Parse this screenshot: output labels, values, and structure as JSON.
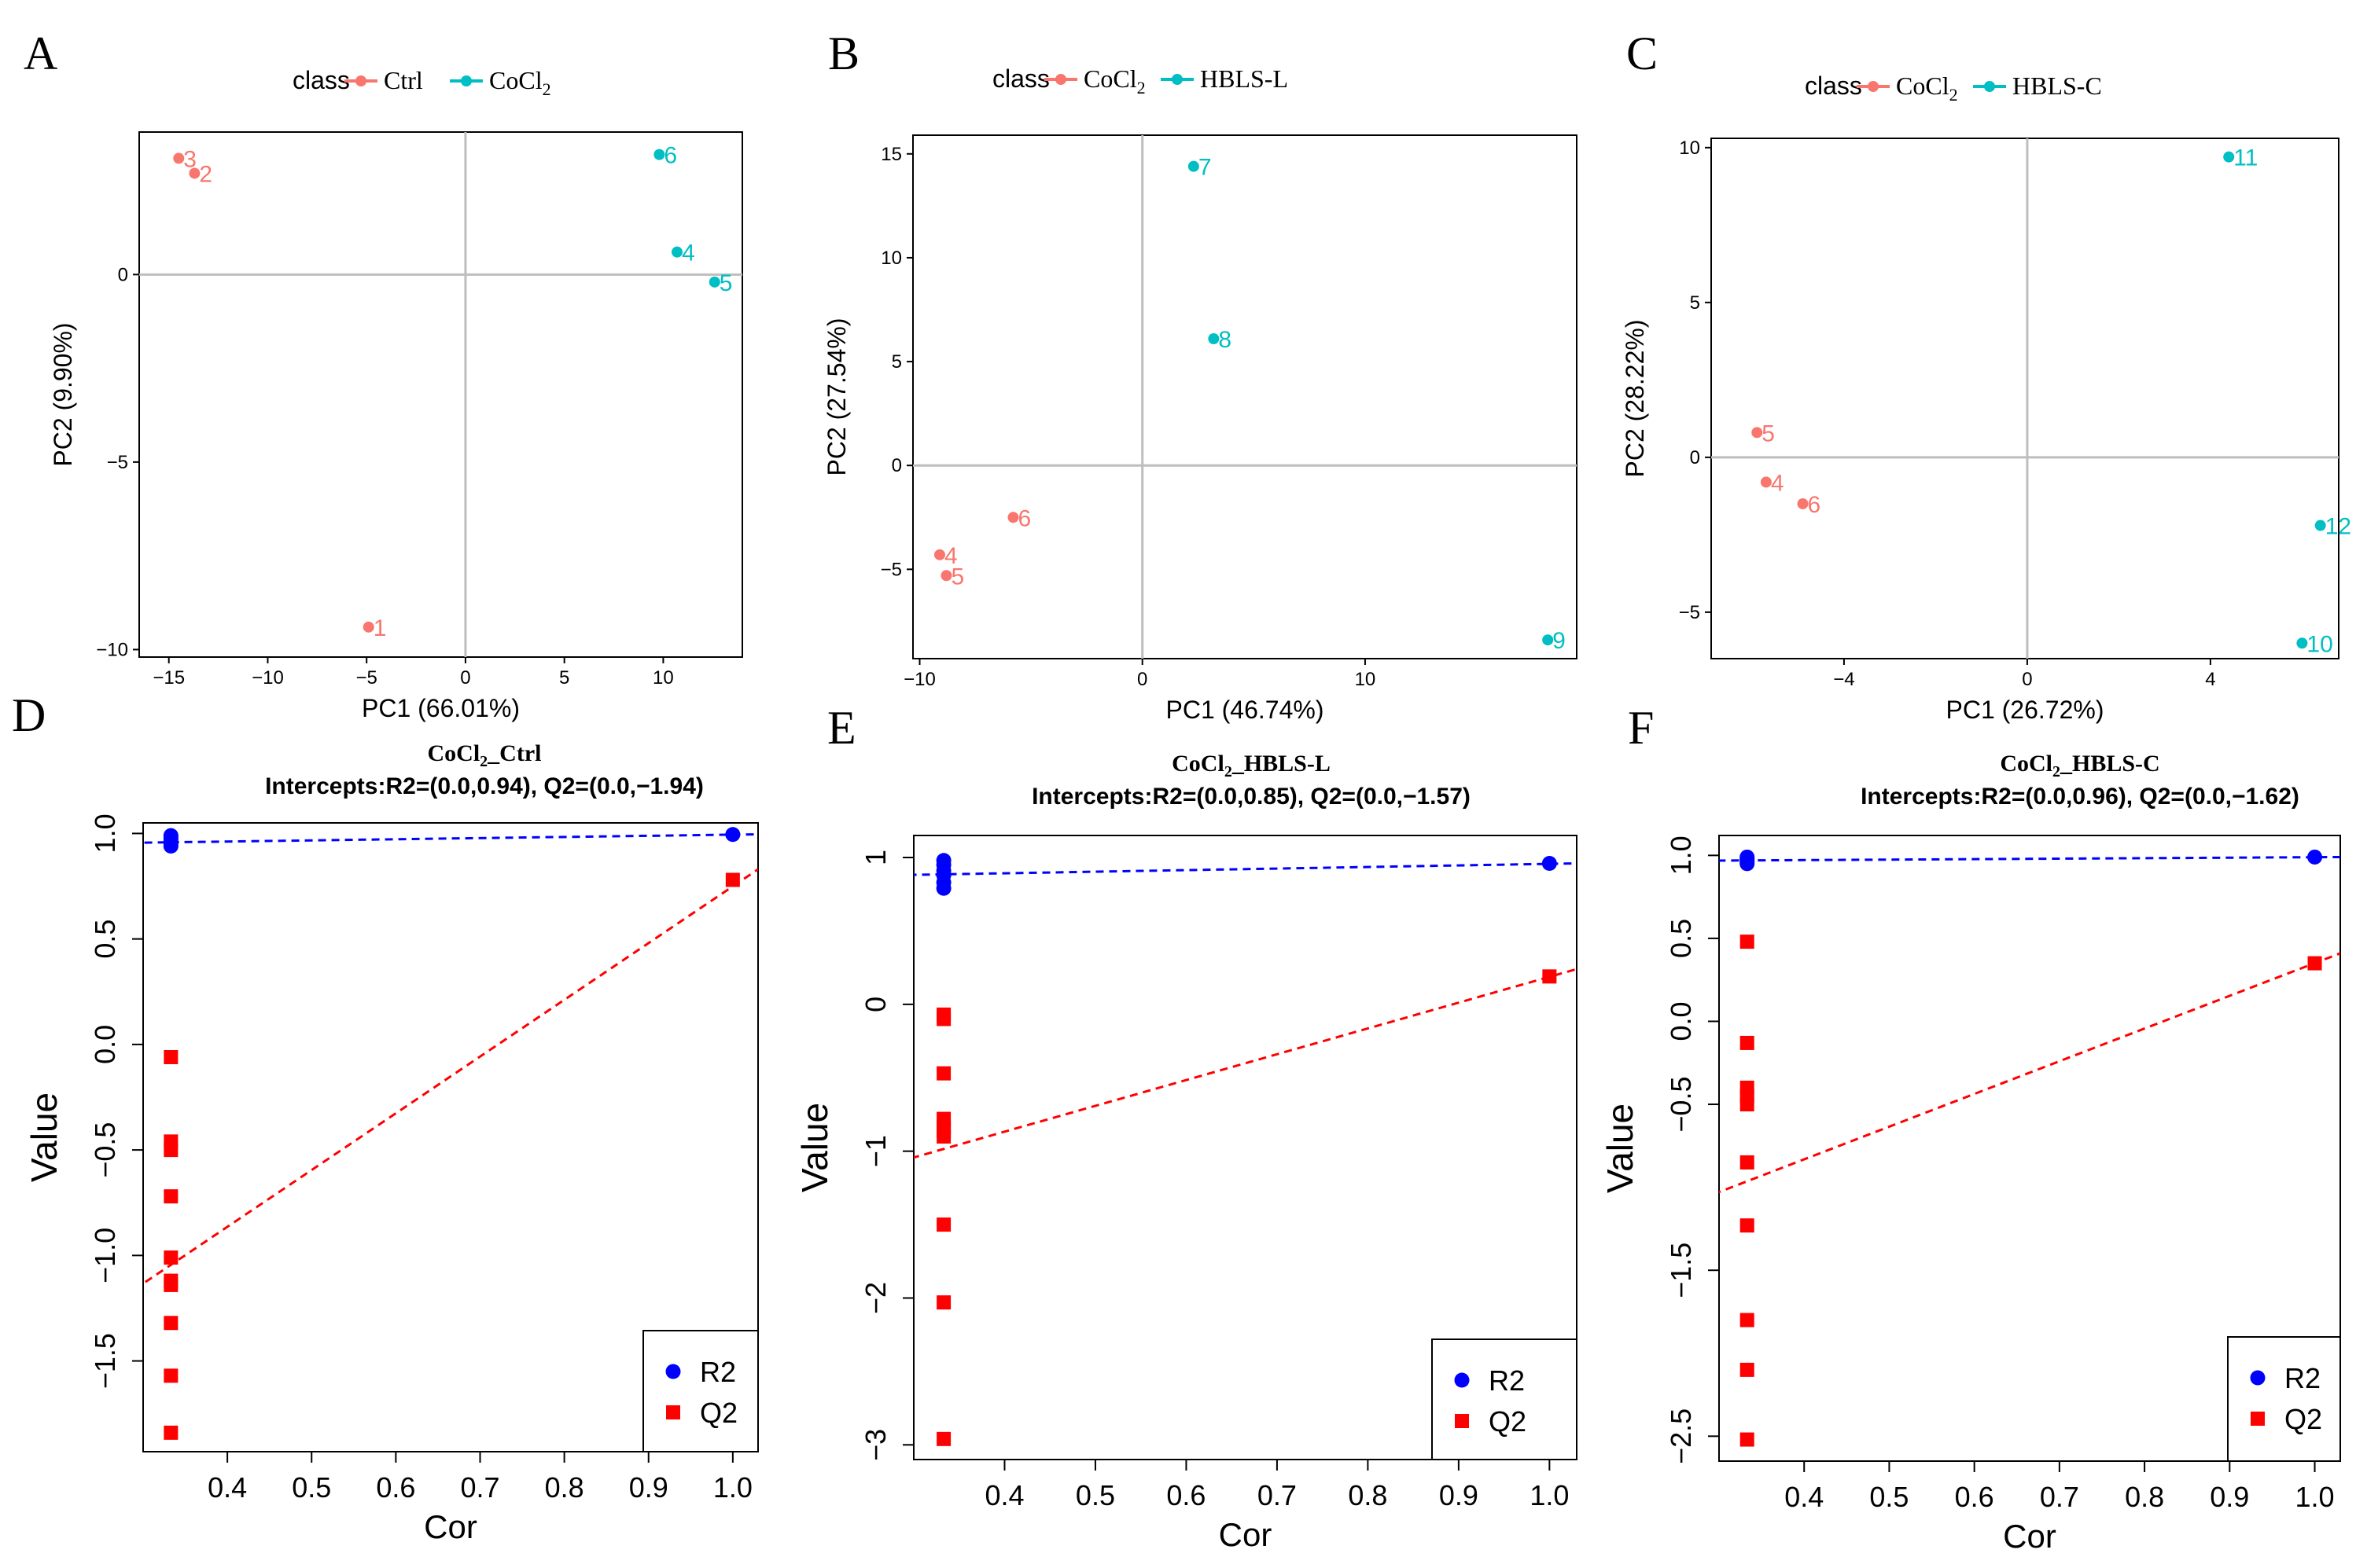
{
  "colors": {
    "salmon": "#f8766d",
    "teal": "#00bfc4",
    "blue": "#0000ff",
    "red": "#ff0000",
    "gray": "#bebebe",
    "black": "#000000"
  },
  "chart_data": [
    {
      "panel": "A",
      "type": "scatter",
      "title": "",
      "xlabel": "PC1 (66.01%)",
      "ylabel": "PC2 (9.90%)",
      "xlim": [
        -16.5,
        14
      ],
      "ylim": [
        -10.2,
        3.8
      ],
      "xticks": [
        -15,
        -10,
        -5,
        0,
        5,
        10
      ],
      "xtick_labels": [
        "−15",
        "−10",
        "−5",
        "0",
        "5",
        "10"
      ],
      "yticks": [
        -10,
        -5,
        0
      ],
      "ytick_labels": [
        "−10",
        "−5",
        "0"
      ],
      "legend": {
        "title": "class",
        "entries": [
          {
            "label": "Ctrl",
            "color": "#f8766d"
          },
          {
            "label": "CoCl",
            "sub": "2",
            "color": "#00bfc4"
          }
        ]
      },
      "series": [
        {
          "name": "Ctrl",
          "color": "#f8766d",
          "points": [
            {
              "x": -14.5,
              "y": 3.1,
              "label": "3"
            },
            {
              "x": -13.7,
              "y": 2.7,
              "label": "2"
            },
            {
              "x": -4.9,
              "y": -9.4,
              "label": "1"
            }
          ]
        },
        {
          "name": "CoCl2",
          "color": "#00bfc4",
          "points": [
            {
              "x": 9.8,
              "y": 3.2,
              "label": "6"
            },
            {
              "x": 10.7,
              "y": 0.6,
              "label": "4"
            },
            {
              "x": 12.6,
              "y": -0.2,
              "label": "5"
            }
          ]
        }
      ]
    },
    {
      "panel": "B",
      "type": "scatter",
      "title": "",
      "xlabel": "PC1 (46.74%)",
      "ylabel": "PC2 (27.54%)",
      "xlim": [
        -10.3,
        19.5
      ],
      "ylim": [
        -9.3,
        15.9
      ],
      "xticks": [
        -10,
        0,
        10
      ],
      "xtick_labels": [
        "−10",
        "0",
        "10"
      ],
      "yticks": [
        -5,
        0,
        5,
        10,
        15
      ],
      "ytick_labels": [
        "−5",
        "0",
        "5",
        "10",
        "15"
      ],
      "legend": {
        "title": "class",
        "entries": [
          {
            "label": "CoCl",
            "sub": "2",
            "color": "#f8766d"
          },
          {
            "label": "HBLS-L",
            "color": "#00bfc4"
          }
        ]
      },
      "series": [
        {
          "name": "CoCl2",
          "color": "#f8766d",
          "points": [
            {
              "x": -5.8,
              "y": -2.5,
              "label": "6"
            },
            {
              "x": -9.1,
              "y": -4.3,
              "label": "4"
            },
            {
              "x": -8.8,
              "y": -5.3,
              "label": "5"
            }
          ]
        },
        {
          "name": "HBLS-L",
          "color": "#00bfc4",
          "points": [
            {
              "x": 2.3,
              "y": 14.4,
              "label": "7"
            },
            {
              "x": 3.2,
              "y": 6.1,
              "label": "8"
            },
            {
              "x": 18.2,
              "y": -8.4,
              "label": "9"
            }
          ]
        }
      ]
    },
    {
      "panel": "C",
      "type": "scatter",
      "title": "",
      "xlabel": "PC1 (26.72%)",
      "ylabel": "PC2 (28.22%)",
      "xlim": [
        -6.9,
        6.8
      ],
      "ylim": [
        -6.5,
        10.3
      ],
      "xticks": [
        -4,
        0,
        4
      ],
      "xtick_labels": [
        "−4",
        "0",
        "4"
      ],
      "yticks": [
        -5,
        0,
        5,
        10
      ],
      "ytick_labels": [
        "−5",
        "0",
        "5",
        "10"
      ],
      "legend": {
        "title": "class",
        "entries": [
          {
            "label": "CoCl",
            "sub": "2",
            "color": "#f8766d"
          },
          {
            "label": "HBLS-C",
            "color": "#00bfc4"
          }
        ]
      },
      "series": [
        {
          "name": "CoCl2",
          "color": "#f8766d",
          "points": [
            {
              "x": -5.9,
              "y": 0.8,
              "label": "5"
            },
            {
              "x": -5.7,
              "y": -0.8,
              "label": "4"
            },
            {
              "x": -4.9,
              "y": -1.5,
              "label": "6"
            }
          ]
        },
        {
          "name": "HBLS-C",
          "color": "#00bfc4",
          "points": [
            {
              "x": 4.4,
              "y": 9.7,
              "label": "11"
            },
            {
              "x": 6.4,
              "y": -2.2,
              "label": "12"
            },
            {
              "x": 6.0,
              "y": -6.0,
              "label": "10"
            }
          ]
        }
      ]
    },
    {
      "panel": "D",
      "type": "scatter",
      "title": "CoCl",
      "title_sub": "2",
      "title_rest": "_Ctrl",
      "subtitle": "Intercepts:R2=(0.0,0.94), Q2=(0.0,−1.94)",
      "xlabel": "Cor",
      "ylabel": "Value",
      "xlim": [
        0.3,
        1.03
      ],
      "ylim": [
        -1.93,
        1.05
      ],
      "xticks": [
        0.4,
        0.5,
        0.6,
        0.7,
        0.8,
        0.9,
        1.0
      ],
      "xtick_labels": [
        "0.4",
        "0.5",
        "0.6",
        "0.7",
        "0.8",
        "0.9",
        "1.0"
      ],
      "yticks": [
        -1.5,
        -1.0,
        -0.5,
        0.0,
        0.5,
        1.0
      ],
      "ytick_labels": [
        "−1.5",
        "−1.0",
        "−0.5",
        "0.0",
        "0.5",
        "1.0"
      ],
      "legend": {
        "entries": [
          {
            "label": "R2",
            "color": "#0000ff",
            "shape": "circle"
          },
          {
            "label": "Q2",
            "color": "#ff0000",
            "shape": "square"
          }
        ]
      },
      "series": [
        {
          "name": "R2",
          "color": "#0000ff",
          "shape": "circle",
          "x": [
            0.333,
            0.333,
            0.333,
            0.333,
            0.333,
            0.333,
            1.0
          ],
          "y": [
            0.99,
            0.98,
            0.97,
            0.96,
            0.95,
            0.94,
            0.995
          ]
        },
        {
          "name": "Q2",
          "color": "#ff0000",
          "shape": "square",
          "x": [
            0.333,
            0.333,
            0.333,
            0.333,
            0.333,
            0.333,
            0.333,
            0.333,
            0.333,
            0.333,
            1.0
          ],
          "y": [
            -0.06,
            -0.46,
            -0.5,
            -0.72,
            -1.01,
            -1.14,
            -1.32,
            -1.57,
            -1.84,
            -1.12,
            0.78
          ]
        }
      ],
      "regression_lines": [
        {
          "name": "R2",
          "color": "#0000ff",
          "intercept": 0.94,
          "end": [
            1.03,
            0.996
          ]
        },
        {
          "name": "Q2",
          "color": "#ff0000",
          "intercept": -1.94,
          "end": [
            1.03,
            0.83
          ]
        }
      ]
    },
    {
      "panel": "E",
      "type": "scatter",
      "title": "CoCl",
      "title_sub": "2",
      "title_rest": "_HBLS-L",
      "subtitle": "Intercepts:R2=(0.0,0.85), Q2=(0.0,−1.57)",
      "xlabel": "Cor",
      "ylabel": "Value",
      "xlim": [
        0.3,
        1.03
      ],
      "ylim": [
        -3.1,
        1.15
      ],
      "xticks": [
        0.4,
        0.5,
        0.6,
        0.7,
        0.8,
        0.9,
        1.0
      ],
      "xtick_labels": [
        "0.4",
        "0.5",
        "0.6",
        "0.7",
        "0.8",
        "0.9",
        "1.0"
      ],
      "yticks": [
        -3,
        -2,
        -1,
        0,
        1
      ],
      "ytick_labels": [
        "−3",
        "−2",
        "−1",
        "0",
        "1"
      ],
      "legend": {
        "entries": [
          {
            "label": "R2",
            "color": "#0000ff",
            "shape": "circle"
          },
          {
            "label": "Q2",
            "color": "#ff0000",
            "shape": "square"
          }
        ]
      },
      "series": [
        {
          "name": "R2",
          "color": "#0000ff",
          "shape": "circle",
          "x": [
            0.333,
            0.333,
            0.333,
            0.333,
            0.333,
            0.333,
            1.0
          ],
          "y": [
            0.98,
            0.95,
            0.91,
            0.88,
            0.83,
            0.79,
            0.96
          ]
        },
        {
          "name": "Q2",
          "color": "#ff0000",
          "shape": "square",
          "x": [
            0.333,
            0.333,
            0.333,
            0.333,
            0.333,
            0.333,
            0.333,
            0.333,
            0.333,
            0.333,
            1.0
          ],
          "y": [
            -0.07,
            -0.1,
            -0.47,
            -0.78,
            -0.83,
            -0.9,
            -1.5,
            -2.03,
            -2.96,
            -0.86,
            0.19
          ]
        }
      ],
      "regression_lines": [
        {
          "name": "R2",
          "color": "#0000ff",
          "intercept": 0.85,
          "end": [
            1.03,
            0.96
          ]
        },
        {
          "name": "Q2",
          "color": "#ff0000",
          "intercept": -1.57,
          "end": [
            1.03,
            0.24
          ]
        }
      ]
    },
    {
      "panel": "F",
      "type": "scatter",
      "title": "CoCl",
      "title_sub": "2",
      "title_rest": "_HBLS-C",
      "subtitle": "Intercepts:R2=(0.0,0.96), Q2=(0.0,−1.62)",
      "xlabel": "Cor",
      "ylabel": "Value",
      "xlim": [
        0.3,
        1.03
      ],
      "ylim": [
        -2.65,
        1.12
      ],
      "xticks": [
        0.4,
        0.5,
        0.6,
        0.7,
        0.8,
        0.9,
        1.0
      ],
      "xtick_labels": [
        "0.4",
        "0.5",
        "0.6",
        "0.7",
        "0.8",
        "0.9",
        "1.0"
      ],
      "yticks": [
        -2.5,
        -1.5,
        -0.5,
        0.0,
        0.5,
        1.0
      ],
      "ytick_labels": [
        "−2.5",
        "−1.5",
        "−0.5",
        "0.0",
        "0.5",
        "1.0"
      ],
      "legend": {
        "entries": [
          {
            "label": "R2",
            "color": "#0000ff",
            "shape": "circle"
          },
          {
            "label": "Q2",
            "color": "#ff0000",
            "shape": "square"
          }
        ]
      },
      "series": [
        {
          "name": "R2",
          "color": "#0000ff",
          "shape": "circle",
          "x": [
            0.333,
            0.333,
            0.333,
            0.333,
            0.333,
            1.0
          ],
          "y": [
            0.99,
            0.98,
            0.97,
            0.96,
            0.95,
            0.99
          ]
        },
        {
          "name": "Q2",
          "color": "#ff0000",
          "shape": "square",
          "x": [
            0.333,
            0.333,
            0.333,
            0.333,
            0.333,
            0.333,
            0.333,
            0.333,
            0.333,
            0.333,
            1.0
          ],
          "y": [
            0.48,
            -0.13,
            -0.4,
            -0.45,
            -0.5,
            -0.85,
            -1.23,
            -1.8,
            -2.1,
            -2.52,
            0.35
          ]
        }
      ],
      "regression_lines": [
        {
          "name": "R2",
          "color": "#0000ff",
          "intercept": 0.96,
          "end": [
            1.03,
            0.99
          ]
        },
        {
          "name": "Q2",
          "color": "#ff0000",
          "intercept": -1.62,
          "end": [
            1.03,
            0.41
          ]
        }
      ]
    }
  ]
}
